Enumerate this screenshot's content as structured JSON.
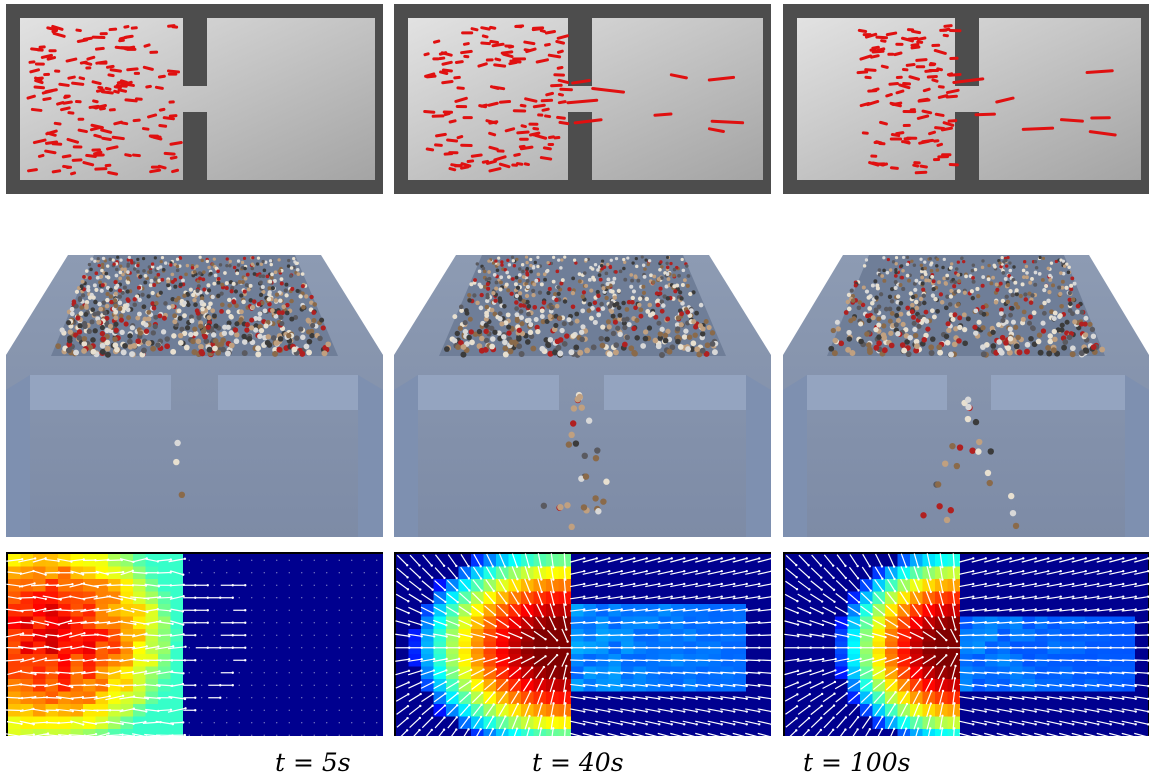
{
  "figure": {
    "columns": [
      {
        "time_label": "t = 5s"
      },
      {
        "time_label": "t = 40s"
      },
      {
        "time_label": "t = 100s"
      }
    ],
    "rows": [
      "agent-trajectories-top-view",
      "rendered-crowd-perspective-view",
      "density-velocity-heatmap"
    ]
  },
  "colors": {
    "wall_dark": "#4d4d4d",
    "floor_light": "#d6d6d6",
    "floor_dark": "#9d9d9d",
    "agent_red": "#e01010",
    "scene_blue": "#8a9cb8",
    "heatmap_background": "#00008f",
    "vector_white": "#ffffff"
  }
}
